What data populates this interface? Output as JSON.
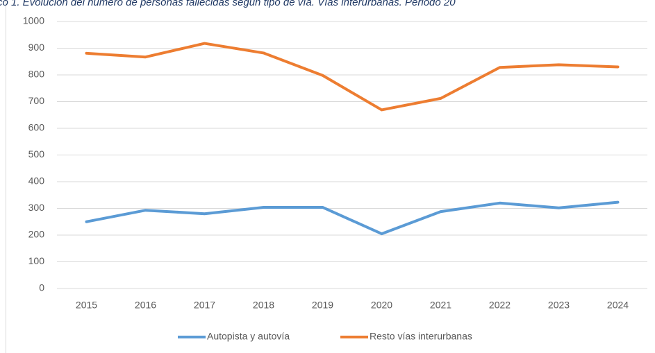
{
  "chart_data": {
    "type": "line",
    "title": "co 1. Evolución del número de personas fallecidas según tipo de vía. Vías interurbanas. Periodo 20",
    "categories": [
      "2015",
      "2016",
      "2017",
      "2018",
      "2019",
      "2020",
      "2021",
      "2022",
      "2023",
      "2024"
    ],
    "series": [
      {
        "name": "Autopista y autovía",
        "color": "#5b9bd5",
        "values": [
          250,
          293,
          280,
          304,
          304,
          205,
          288,
          320,
          302,
          323
        ]
      },
      {
        "name": "Resto vías interurbanas",
        "color": "#ed7d31",
        "values": [
          881,
          867,
          918,
          882,
          798,
          669,
          712,
          828,
          838,
          830
        ]
      }
    ],
    "ylim": [
      0,
      1000
    ],
    "yticks": [
      0,
      100,
      200,
      300,
      400,
      500,
      600,
      700,
      800,
      900,
      1000
    ],
    "grid": true,
    "legend": "bottom"
  }
}
